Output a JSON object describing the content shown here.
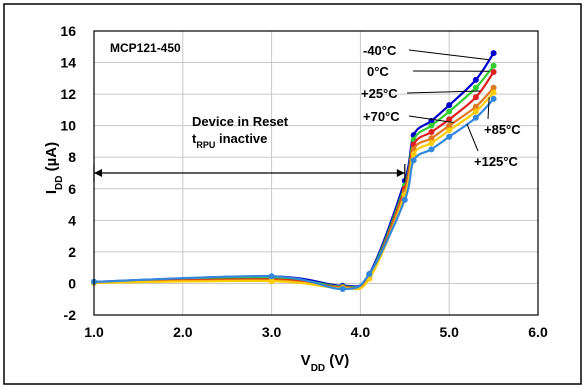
{
  "chart_data": {
    "type": "line",
    "title": "",
    "xlabel": {
      "main": "V",
      "sub": "DD",
      "tail": " (V)"
    },
    "ylabel": {
      "main": "I",
      "sub": "DD",
      "tail": " (µA)"
    },
    "xlim": [
      1.0,
      6.0
    ],
    "ylim": [
      -2,
      16
    ],
    "x_ticks": [
      1.0,
      2.0,
      3.0,
      4.0,
      5.0,
      6.0
    ],
    "x_tick_labels": [
      "1.0",
      "2.0",
      "3.0",
      "4.0",
      "5.0",
      "6.0"
    ],
    "y_ticks": [
      -2,
      0,
      2,
      4,
      6,
      8,
      10,
      12,
      14,
      16
    ],
    "y_tick_labels": [
      "-2",
      "0",
      "2",
      "4",
      "6",
      "8",
      "10",
      "12",
      "14",
      "16"
    ],
    "grid": true,
    "annotations": {
      "device_label": "MCP121-450",
      "reset_line1": "Device in Reset",
      "reset_line2": {
        "main": "t",
        "sub": "RPU",
        "tail": " inactive"
      },
      "reset_range": [
        1.0,
        4.5
      ]
    },
    "series": [
      {
        "name": "-40°C",
        "color": "#0000cc",
        "x": [
          1.0,
          3.0,
          3.8,
          4.1,
          4.5,
          4.6,
          4.8,
          5.0,
          5.3,
          5.5
        ],
        "y": [
          0.1,
          0.45,
          -0.15,
          0.6,
          6.5,
          9.4,
          10.3,
          11.3,
          12.9,
          14.6
        ]
      },
      {
        "name": "0°C",
        "color": "#33cc33",
        "x": [
          1.0,
          3.0,
          3.8,
          4.1,
          4.5,
          4.6,
          4.8,
          5.0,
          5.3,
          5.5
        ],
        "y": [
          0.08,
          0.35,
          -0.2,
          0.5,
          6.2,
          9.1,
          10.0,
          10.9,
          12.4,
          13.8
        ]
      },
      {
        "name": "+25°C",
        "color": "#e02020",
        "x": [
          1.0,
          3.0,
          3.8,
          4.1,
          4.5,
          4.6,
          4.8,
          5.0,
          5.3,
          5.5
        ],
        "y": [
          0.06,
          0.25,
          -0.25,
          0.4,
          6.0,
          8.8,
          9.6,
          10.4,
          11.8,
          13.4
        ]
      },
      {
        "name": "+70°C",
        "color": "#e07820",
        "x": [
          1.0,
          3.0,
          3.8,
          4.1,
          4.5,
          4.6,
          4.8,
          5.0,
          5.3,
          5.5
        ],
        "y": [
          0.05,
          0.2,
          -0.28,
          0.35,
          5.8,
          8.5,
          9.2,
          10.0,
          11.2,
          12.4
        ]
      },
      {
        "name": "+85°C",
        "color": "#ffcc00",
        "x": [
          1.0,
          3.0,
          3.8,
          4.1,
          4.5,
          4.6,
          4.8,
          5.0,
          5.3,
          5.5
        ],
        "y": [
          0.04,
          0.15,
          -0.3,
          0.3,
          5.6,
          8.2,
          8.9,
          9.7,
          10.9,
          12.1
        ]
      },
      {
        "name": "+125°C",
        "color": "#3388dd",
        "x": [
          1.0,
          3.0,
          3.8,
          4.1,
          4.5,
          4.6,
          4.8,
          5.0,
          5.3,
          5.5
        ],
        "y": [
          0.1,
          0.45,
          -0.35,
          0.6,
          5.3,
          7.8,
          8.5,
          9.3,
          10.5,
          11.7
        ]
      }
    ],
    "legend_labels": [
      {
        "text": "-40°C",
        "series": 0
      },
      {
        "text": "0°C",
        "series": 1
      },
      {
        "text": "+25°C",
        "series": 2
      },
      {
        "text": "+70°C",
        "series": 3
      },
      {
        "text": "+85°C",
        "series": 4
      },
      {
        "text": "+125°C",
        "series": 5
      }
    ]
  }
}
